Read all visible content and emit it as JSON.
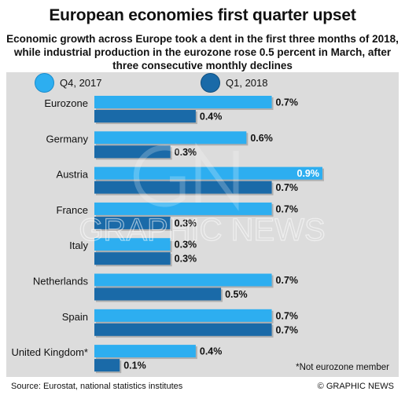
{
  "title": "European economies first quarter upset",
  "subtitle": "Economic growth across Europe took a dent in the first three months of 2018, while industrial production in the eurozone rose 0.5 percent in March, after three consecutive monthly declines",
  "footnote": "*Not eurozone member",
  "source": "Source: Eurostat, national statistics institutes",
  "credit": "© GRAPHIC NEWS",
  "watermark": "GRAPHIC NEWS",
  "colors": {
    "q4": "#2daef0",
    "q1": "#1a6aa8",
    "panel": "#dcdcdc",
    "bar_shadow": "#8a8a8a"
  },
  "chart_data": {
    "type": "bar",
    "orientation": "horizontal",
    "categories": [
      "Eurozone",
      "Germany",
      "Austria",
      "France",
      "Italy",
      "Netherlands",
      "Spain",
      "United Kingdom*"
    ],
    "series": [
      {
        "name": "Q4, 2017",
        "values": [
          0.7,
          0.6,
          0.9,
          0.7,
          0.3,
          0.7,
          0.7,
          0.4
        ],
        "labels": [
          "0.7%",
          "0.6%",
          "0.9%",
          "0.7%",
          "0.3%",
          "0.7%",
          "0.7%",
          "0.4%"
        ]
      },
      {
        "name": "Q1, 2018",
        "values": [
          0.4,
          0.3,
          0.7,
          0.3,
          0.3,
          0.5,
          0.7,
          0.1
        ],
        "labels": [
          "0.4%",
          "0.3%",
          "0.7%",
          "0.3%",
          "0.3%",
          "0.5%",
          "0.7%",
          "0.1%"
        ]
      }
    ],
    "xlim": [
      0,
      0.9
    ],
    "grid": false,
    "legend": "top"
  }
}
